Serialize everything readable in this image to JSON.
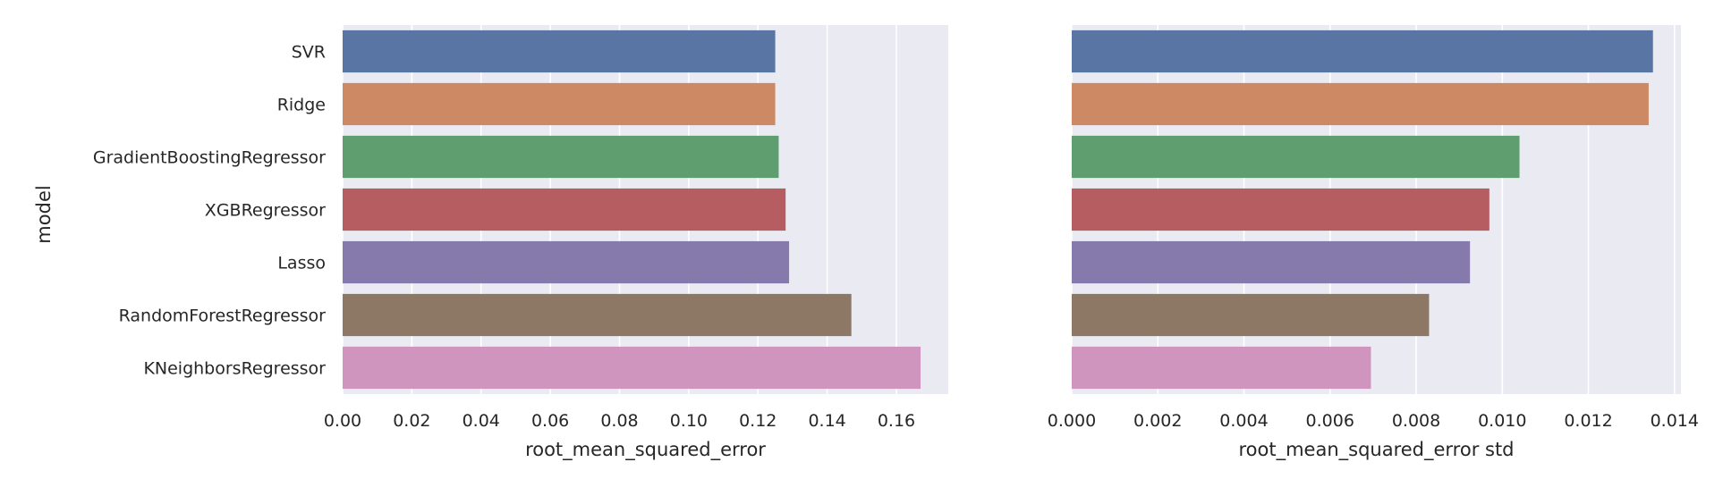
{
  "chart_data": [
    {
      "type": "bar",
      "orientation": "horizontal",
      "categories": [
        "SVR",
        "Ridge",
        "GradientBoostingRegressor",
        "XGBRegressor",
        "Lasso",
        "RandomForestRegressor",
        "KNeighborsRegressor"
      ],
      "values": [
        0.125,
        0.125,
        0.126,
        0.128,
        0.129,
        0.147,
        0.167
      ],
      "colors": [
        "#5875a4",
        "#cc8963",
        "#5f9e6e",
        "#b55d60",
        "#857aab",
        "#8d7866",
        "#d095bf"
      ],
      "xlabel": "root_mean_squared_error",
      "ylabel": "model",
      "xlim": [
        0,
        0.175
      ],
      "xticks": [
        "0.00",
        "0.02",
        "0.04",
        "0.06",
        "0.08",
        "0.10",
        "0.12",
        "0.14",
        "0.16"
      ],
      "grid": true
    },
    {
      "type": "bar",
      "orientation": "horizontal",
      "categories": [
        "SVR",
        "Ridge",
        "GradientBoostingRegressor",
        "XGBRegressor",
        "Lasso",
        "RandomForestRegressor",
        "KNeighborsRegressor"
      ],
      "values": [
        0.0135,
        0.0134,
        0.0104,
        0.0097,
        0.00925,
        0.0083,
        0.00695
      ],
      "colors": [
        "#5875a4",
        "#cc8963",
        "#5f9e6e",
        "#b55d60",
        "#857aab",
        "#8d7866",
        "#d095bf"
      ],
      "xlabel": "root_mean_squared_error std",
      "ylabel": "",
      "xlim": [
        0,
        0.01415
      ],
      "xticks": [
        "0.000",
        "0.002",
        "0.004",
        "0.006",
        "0.008",
        "0.010",
        "0.012",
        "0.014"
      ],
      "grid": true
    }
  ]
}
